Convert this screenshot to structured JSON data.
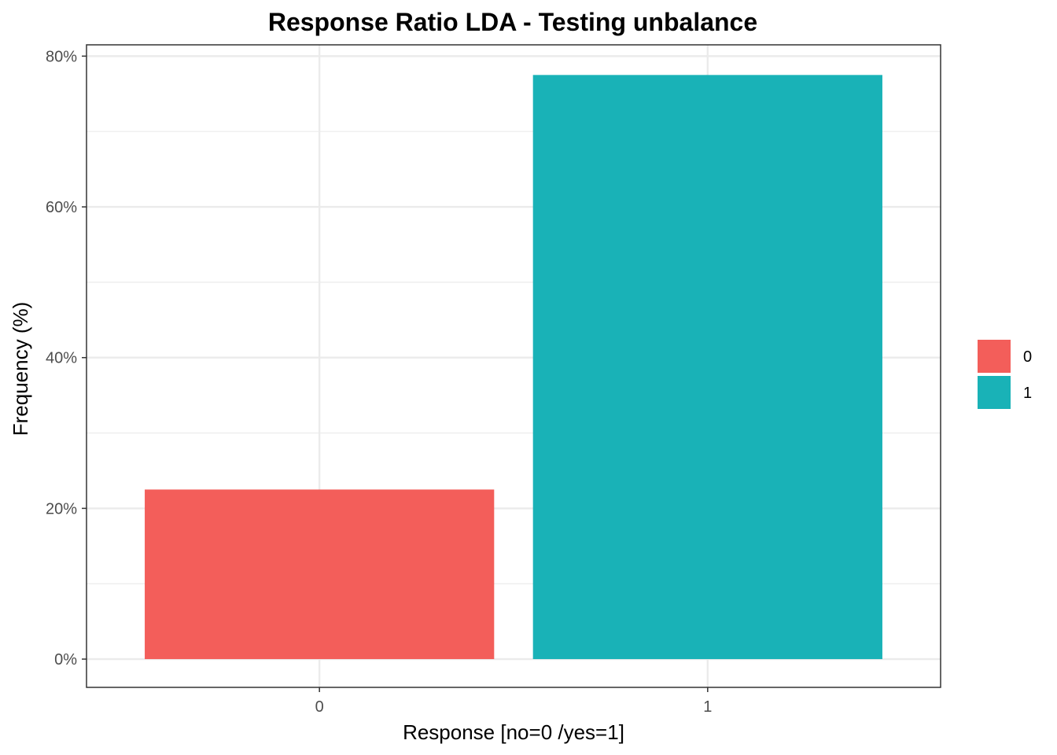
{
  "chart_data": {
    "type": "bar",
    "title": "Response Ratio LDA - Testing unbalance",
    "xlabel": "Response [no=0 /yes=1]",
    "ylabel": "Frequency (%)",
    "categories": [
      "0",
      "1"
    ],
    "values": [
      22.5,
      77.5
    ],
    "colors": [
      "#F35E5A",
      "#19B2B7"
    ],
    "ylim": [
      -3.75,
      81.5
    ],
    "yticks": [
      0,
      20,
      40,
      60,
      80
    ],
    "ytick_labels": [
      "0%",
      "20%",
      "40%",
      "60%",
      "80%"
    ],
    "grid": true,
    "legend": {
      "position": "right",
      "entries": [
        {
          "label": "0",
          "color": "#F35E5A"
        },
        {
          "label": "1",
          "color": "#19B2B7"
        }
      ]
    }
  }
}
